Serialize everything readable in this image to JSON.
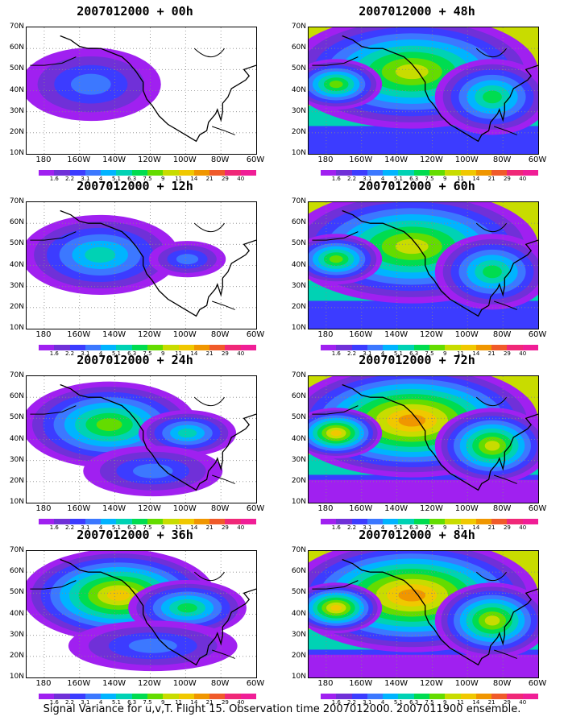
{
  "panels": [
    {
      "title": "2007012000 + 00h",
      "lead": 0
    },
    {
      "title": "2007012000 + 48h",
      "lead": 48
    },
    {
      "title": "2007012000 + 12h",
      "lead": 12
    },
    {
      "title": "2007012000 + 60h",
      "lead": 60
    },
    {
      "title": "2007012000 + 24h",
      "lead": 24
    },
    {
      "title": "2007012000 + 72h",
      "lead": 72
    },
    {
      "title": "2007012000 + 36h",
      "lead": 36
    },
    {
      "title": "2007012000 + 84h",
      "lead": 84
    }
  ],
  "axes": {
    "lat_labels": [
      "70N",
      "60N",
      "50N",
      "40N",
      "30N",
      "20N",
      "10N"
    ],
    "lon_labels": [
      "180",
      "160W",
      "140W",
      "120W",
      "100W",
      "80W",
      "60W"
    ]
  },
  "colorbar": {
    "labels": [
      "1.6",
      "2.2",
      "3.1",
      "4",
      "5.1",
      "6.3",
      "7.5",
      "9",
      "11",
      "14",
      "21",
      "29",
      "40"
    ],
    "colors": [
      "#a020f0",
      "#7030d8",
      "#3c3cff",
      "#3c78ff",
      "#00b4ff",
      "#00d2b4",
      "#00dc50",
      "#64dc00",
      "#c8dc00",
      "#f0c800",
      "#f09600",
      "#f05a2a",
      "#f02878",
      "#f01e96"
    ]
  },
  "caption": "Signal Variance for u,v,T. Flight 15. Observation time 2007012000. 2007011900 ensemble."
}
